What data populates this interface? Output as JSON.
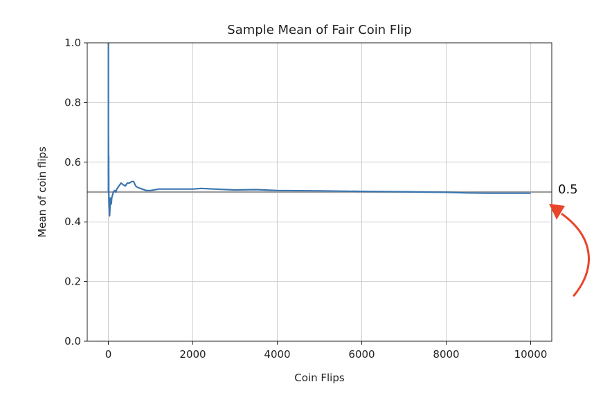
{
  "chart_data": {
    "type": "line",
    "title": "Sample Mean of Fair Coin Flip",
    "xlabel": "Coin Flips",
    "ylabel": "Mean of coin flips",
    "xlim": [
      -500,
      10500
    ],
    "ylim": [
      0.0,
      1.0
    ],
    "xticks": [
      0,
      2000,
      4000,
      6000,
      8000,
      10000
    ],
    "xtick_labels": [
      "0",
      "2000",
      "4000",
      "6000",
      "8000",
      "10000"
    ],
    "yticks": [
      0.0,
      0.2,
      0.4,
      0.6,
      0.8,
      1.0
    ],
    "ytick_labels": [
      "0.0",
      "0.2",
      "0.4",
      "0.6",
      "0.8",
      "1.0"
    ],
    "grid": true,
    "series": [
      {
        "x": [
          1,
          2,
          3,
          5,
          8,
          10,
          15,
          20,
          25,
          30,
          40,
          50,
          60,
          70,
          80,
          100,
          120,
          150,
          180,
          200,
          250,
          300,
          350,
          400,
          450,
          500,
          550,
          600,
          650,
          700,
          800,
          900,
          1000,
          1200,
          1500,
          1800,
          2000,
          2200,
          2500,
          3000,
          3500,
          4000,
          5000,
          6000,
          7000,
          8000,
          8500,
          9000,
          9500,
          10000
        ],
        "y": [
          1.0,
          0.5,
          0.67,
          0.6,
          0.62,
          0.5,
          0.47,
          0.45,
          0.44,
          0.42,
          0.45,
          0.48,
          0.47,
          0.46,
          0.48,
          0.49,
          0.5,
          0.505,
          0.5,
          0.51,
          0.52,
          0.53,
          0.525,
          0.52,
          0.53,
          0.53,
          0.535,
          0.535,
          0.52,
          0.515,
          0.51,
          0.505,
          0.505,
          0.51,
          0.51,
          0.51,
          0.51,
          0.512,
          0.51,
          0.507,
          0.508,
          0.505,
          0.504,
          0.502,
          0.501,
          0.499,
          0.497,
          0.496,
          0.496,
          0.496
        ]
      }
    ],
    "reference_line": {
      "y": 0.5,
      "label": "0.5"
    },
    "colors": {
      "series": "#3b75af",
      "reference": "#9e9e9e",
      "arrow": "#e8462a",
      "grid": "#d0d0d0"
    }
  }
}
